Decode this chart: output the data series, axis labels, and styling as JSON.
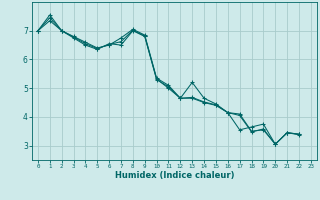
{
  "xlabel": "Humidex (Indice chaleur)",
  "background_color": "#ceeaea",
  "grid_color": "#a8cccc",
  "line_color": "#006666",
  "xlim": [
    -0.5,
    23.5
  ],
  "ylim": [
    2.5,
    8.0
  ],
  "xticks": [
    0,
    1,
    2,
    3,
    4,
    5,
    6,
    7,
    8,
    9,
    10,
    11,
    12,
    13,
    14,
    15,
    16,
    17,
    18,
    19,
    20,
    21,
    22,
    23
  ],
  "yticks": [
    3,
    4,
    5,
    6,
    7
  ],
  "lines": [
    {
      "x": [
        0,
        1,
        2,
        3,
        4,
        5,
        6,
        7,
        8,
        9,
        10,
        11,
        12,
        13,
        14,
        15,
        16,
        17,
        18,
        19,
        20,
        21,
        22
      ],
      "y": [
        7.0,
        7.55,
        7.0,
        6.8,
        6.6,
        6.4,
        6.5,
        6.75,
        7.05,
        6.85,
        5.35,
        5.1,
        4.65,
        5.2,
        4.65,
        4.45,
        4.15,
        3.55,
        3.65,
        3.75,
        3.05,
        3.45,
        3.4
      ]
    },
    {
      "x": [
        0,
        1,
        2,
        3,
        4,
        5,
        6,
        7,
        8,
        9,
        10,
        11,
        12,
        13,
        14,
        15,
        16,
        17,
        18,
        19,
        20,
        21,
        22
      ],
      "y": [
        7.0,
        7.35,
        7.0,
        6.75,
        6.5,
        6.35,
        6.55,
        6.5,
        7.0,
        6.8,
        5.3,
        5.05,
        4.65,
        4.65,
        4.5,
        4.4,
        4.15,
        4.1,
        3.5,
        3.55,
        3.05,
        3.45,
        3.4
      ]
    },
    {
      "x": [
        0,
        1,
        2,
        3,
        4,
        5,
        6,
        7,
        8,
        9,
        10,
        11,
        12,
        13,
        14,
        15,
        16,
        17,
        18,
        19,
        20,
        21,
        22
      ],
      "y": [
        7.0,
        7.45,
        7.0,
        6.78,
        6.55,
        6.38,
        6.52,
        6.62,
        7.02,
        6.82,
        5.32,
        5.0,
        4.65,
        4.68,
        4.52,
        4.42,
        4.15,
        4.05,
        3.48,
        3.58,
        3.05,
        3.45,
        3.38
      ]
    }
  ]
}
